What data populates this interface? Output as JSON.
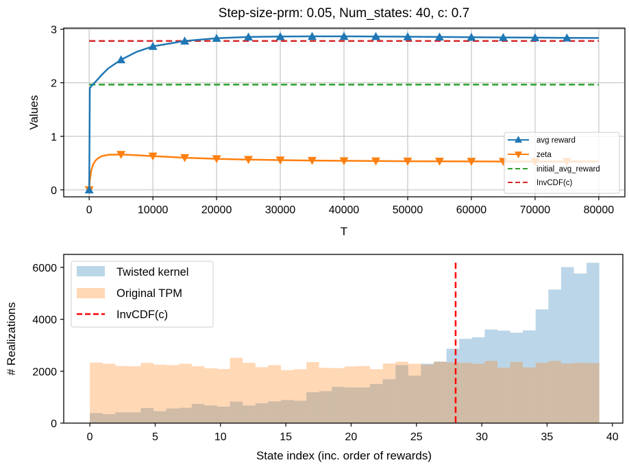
{
  "chart_data": [
    {
      "type": "line",
      "title": "Step-size-prm: 0.05, Num_states: 40, c: 0.7",
      "xlabel": "T",
      "ylabel": "Values",
      "xlim": [
        -4000,
        84100
      ],
      "ylim": [
        -0.13,
        3.02
      ],
      "xticks": [
        0,
        10000,
        20000,
        30000,
        40000,
        50000,
        60000,
        70000,
        80000
      ],
      "xtick_labels": [
        "0",
        "10000",
        "20000",
        "30000",
        "40000",
        "50000",
        "60000",
        "70000",
        "80000"
      ],
      "yticks": [
        0,
        1,
        2,
        3
      ],
      "ytick_labels": [
        "0",
        "1",
        "2",
        "3"
      ],
      "grid": true,
      "legend": "lower-right",
      "series": [
        {
          "name": "avg reward",
          "color": "#1f77b4",
          "marker": "triangle-up",
          "x": [
            0,
            100,
            500,
            1000,
            2000,
            3000,
            5000,
            7500,
            10000,
            15000,
            20000,
            25000,
            30000,
            35000,
            40000,
            45000,
            50000,
            55000,
            60000,
            65000,
            70000,
            75000,
            80000
          ],
          "y": [
            0,
            1.9,
            1.96,
            2.02,
            2.15,
            2.27,
            2.43,
            2.58,
            2.68,
            2.78,
            2.83,
            2.855,
            2.862,
            2.866,
            2.866,
            2.864,
            2.86,
            2.855,
            2.85,
            2.846,
            2.842,
            2.838,
            2.835
          ],
          "marker_x": [
            0,
            5000,
            10000,
            15000,
            20000,
            25000,
            30000,
            35000,
            40000,
            45000,
            50000,
            55000,
            60000,
            65000,
            70000,
            75000
          ]
        },
        {
          "name": "zeta",
          "color": "#ff7f0e",
          "marker": "triangle-down",
          "x": [
            0,
            100,
            300,
            600,
            1000,
            1500,
            2000,
            3000,
            5000,
            10000,
            15000,
            20000,
            25000,
            30000,
            35000,
            40000,
            45000,
            50000,
            55000,
            60000,
            65000,
            70000,
            75000,
            80000
          ],
          "y": [
            0,
            0.18,
            0.35,
            0.47,
            0.55,
            0.6,
            0.63,
            0.655,
            0.66,
            0.63,
            0.6,
            0.58,
            0.565,
            0.555,
            0.548,
            0.542,
            0.538,
            0.535,
            0.533,
            0.531,
            0.53,
            0.53,
            0.53,
            0.53
          ],
          "marker_x": [
            0,
            5000,
            10000,
            15000,
            20000,
            25000,
            30000,
            35000,
            40000,
            45000,
            50000,
            55000,
            60000,
            65000,
            70000,
            75000
          ]
        },
        {
          "name": "initial_avg_reward",
          "color": "#2ca02c",
          "style": "dashed",
          "x": [
            0,
            80000
          ],
          "y": [
            1.965,
            1.965
          ]
        },
        {
          "name": "InvCDF(c)",
          "color": "#d62728",
          "style": "dashed",
          "x": [
            0,
            80000
          ],
          "y": [
            2.78,
            2.78
          ]
        }
      ]
    },
    {
      "type": "bar",
      "subtype": "histogram",
      "title": "",
      "xlabel": "State index (inc. order of rewards)",
      "ylabel": "# Realizations",
      "xlim": [
        -2.0,
        40.8
      ],
      "ylim": [
        0,
        6500
      ],
      "xticks": [
        0,
        5,
        10,
        15,
        20,
        25,
        30,
        35,
        40
      ],
      "xtick_labels": [
        "0",
        "5",
        "10",
        "15",
        "20",
        "25",
        "30",
        "35",
        "40"
      ],
      "yticks": [
        0,
        2000,
        4000,
        6000
      ],
      "ytick_labels": [
        "0",
        "2000",
        "4000",
        "6000"
      ],
      "grid": false,
      "legend": "top-left",
      "bin_start": 0,
      "bin_width": 0.975,
      "categories": [
        0,
        1,
        2,
        3,
        4,
        5,
        6,
        7,
        8,
        9,
        10,
        11,
        12,
        13,
        14,
        15,
        16,
        17,
        18,
        19,
        20,
        21,
        22,
        23,
        24,
        25,
        26,
        27,
        28,
        29,
        30,
        31,
        32,
        33,
        34,
        35,
        36,
        37,
        38,
        39
      ],
      "series": [
        {
          "name": "Twisted kernel",
          "color": "#1f77b4",
          "alpha": 0.3,
          "values": [
            387,
            343,
            414,
            414,
            581,
            458,
            563,
            590,
            739,
            678,
            634,
            827,
            678,
            766,
            836,
            889,
            862,
            1188,
            1230,
            1399,
            1373,
            1373,
            1505,
            1690,
            2235,
            1830,
            2288,
            2367,
            2869,
            3247,
            3309,
            3608,
            3564,
            3485,
            3573,
            4383,
            5148,
            6010,
            5764,
            6178
          ]
        },
        {
          "name": "Original TPM",
          "color": "#ff7f0e",
          "alpha": 0.3,
          "values": [
            2332,
            2288,
            2200,
            2191,
            2323,
            2253,
            2235,
            2288,
            2191,
            2112,
            2086,
            2517,
            2323,
            2156,
            2235,
            2042,
            2077,
            2350,
            2130,
            2121,
            2182,
            2200,
            2077,
            2297,
            2367,
            2288,
            2253,
            2367,
            2341,
            2323,
            2288,
            2394,
            2138,
            2358,
            2147,
            2323,
            2394,
            2297,
            2323,
            2314
          ]
        }
      ],
      "vline": {
        "name": "InvCDF(c)",
        "x": 28,
        "color": "#ff0000",
        "style": "dashed"
      }
    }
  ]
}
